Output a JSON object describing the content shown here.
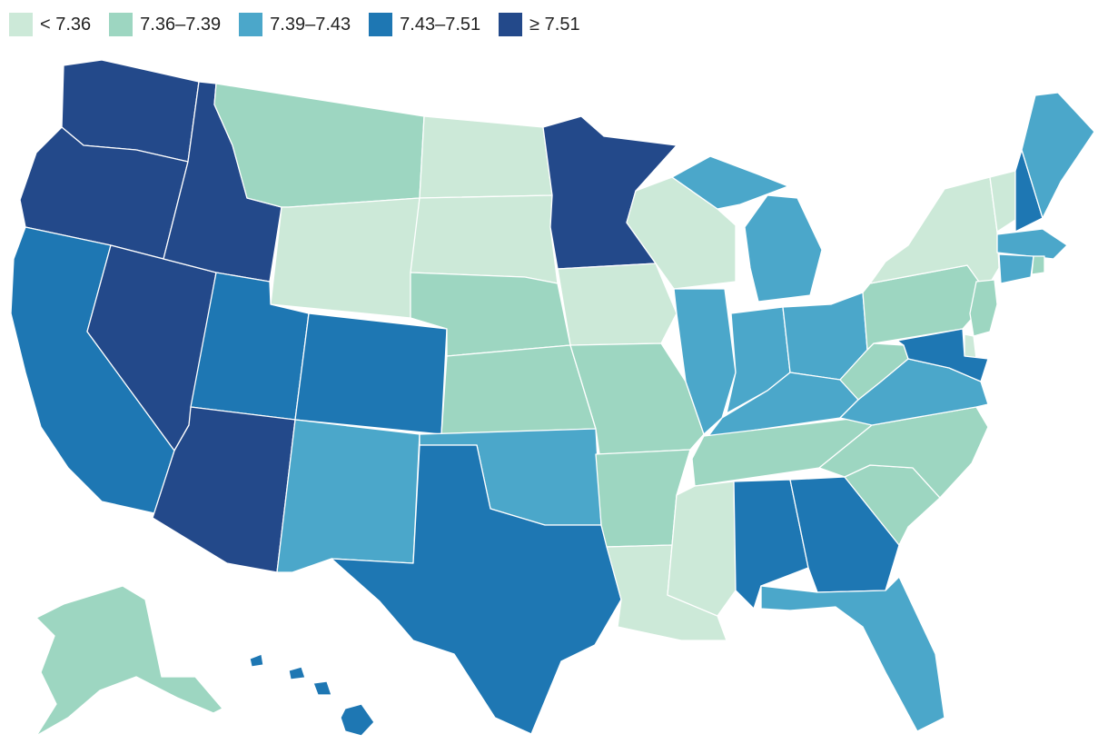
{
  "legend": {
    "items": [
      {
        "label": "< 7.36",
        "color": "#cce9d8"
      },
      {
        "label": "7.36–7.39",
        "color": "#9dd6c1"
      },
      {
        "label": "7.39–7.43",
        "color": "#4ba7ca"
      },
      {
        "label": "7.43–7.51",
        "color": "#1e77b3"
      },
      {
        "label": "≥ 7.51",
        "color": "#23498a"
      }
    ]
  },
  "states": [
    {
      "name": "Washington",
      "bin": 4
    },
    {
      "name": "Oregon",
      "bin": 4
    },
    {
      "name": "California",
      "bin": 3
    },
    {
      "name": "Nevada",
      "bin": 4
    },
    {
      "name": "Idaho",
      "bin": 4
    },
    {
      "name": "Montana",
      "bin": 1
    },
    {
      "name": "Wyoming",
      "bin": 0
    },
    {
      "name": "Utah",
      "bin": 3
    },
    {
      "name": "Arizona",
      "bin": 4
    },
    {
      "name": "Colorado",
      "bin": 3
    },
    {
      "name": "New Mexico",
      "bin": 2
    },
    {
      "name": "North Dakota",
      "bin": 0
    },
    {
      "name": "South Dakota",
      "bin": 0
    },
    {
      "name": "Nebraska",
      "bin": 1
    },
    {
      "name": "Kansas",
      "bin": 1
    },
    {
      "name": "Oklahoma",
      "bin": 2
    },
    {
      "name": "Texas",
      "bin": 3
    },
    {
      "name": "Minnesota",
      "bin": 4
    },
    {
      "name": "Iowa",
      "bin": 0
    },
    {
      "name": "Missouri",
      "bin": 1
    },
    {
      "name": "Arkansas",
      "bin": 1
    },
    {
      "name": "Louisiana",
      "bin": 0
    },
    {
      "name": "Wisconsin",
      "bin": 0
    },
    {
      "name": "Illinois",
      "bin": 2
    },
    {
      "name": "Michigan",
      "bin": 2
    },
    {
      "name": "Indiana",
      "bin": 2
    },
    {
      "name": "Ohio",
      "bin": 2
    },
    {
      "name": "Kentucky",
      "bin": 2
    },
    {
      "name": "Tennessee",
      "bin": 1
    },
    {
      "name": "Mississippi",
      "bin": 0
    },
    {
      "name": "Alabama",
      "bin": 3
    },
    {
      "name": "Georgia",
      "bin": 3
    },
    {
      "name": "Florida",
      "bin": 2
    },
    {
      "name": "South Carolina",
      "bin": 1
    },
    {
      "name": "North Carolina",
      "bin": 1
    },
    {
      "name": "Virginia",
      "bin": 2
    },
    {
      "name": "West Virginia",
      "bin": 1
    },
    {
      "name": "Pennsylvania",
      "bin": 1
    },
    {
      "name": "New York",
      "bin": 0
    },
    {
      "name": "Vermont",
      "bin": 0
    },
    {
      "name": "New Hampshire",
      "bin": 3
    },
    {
      "name": "Maine",
      "bin": 2
    },
    {
      "name": "Massachusetts",
      "bin": 2
    },
    {
      "name": "Connecticut",
      "bin": 2
    },
    {
      "name": "Rhode Island",
      "bin": 1
    },
    {
      "name": "New Jersey",
      "bin": 1
    },
    {
      "name": "Delaware",
      "bin": 0
    },
    {
      "name": "Maryland",
      "bin": 3
    },
    {
      "name": "Alaska",
      "bin": 1
    },
    {
      "name": "Hawaii",
      "bin": 3
    }
  ]
}
